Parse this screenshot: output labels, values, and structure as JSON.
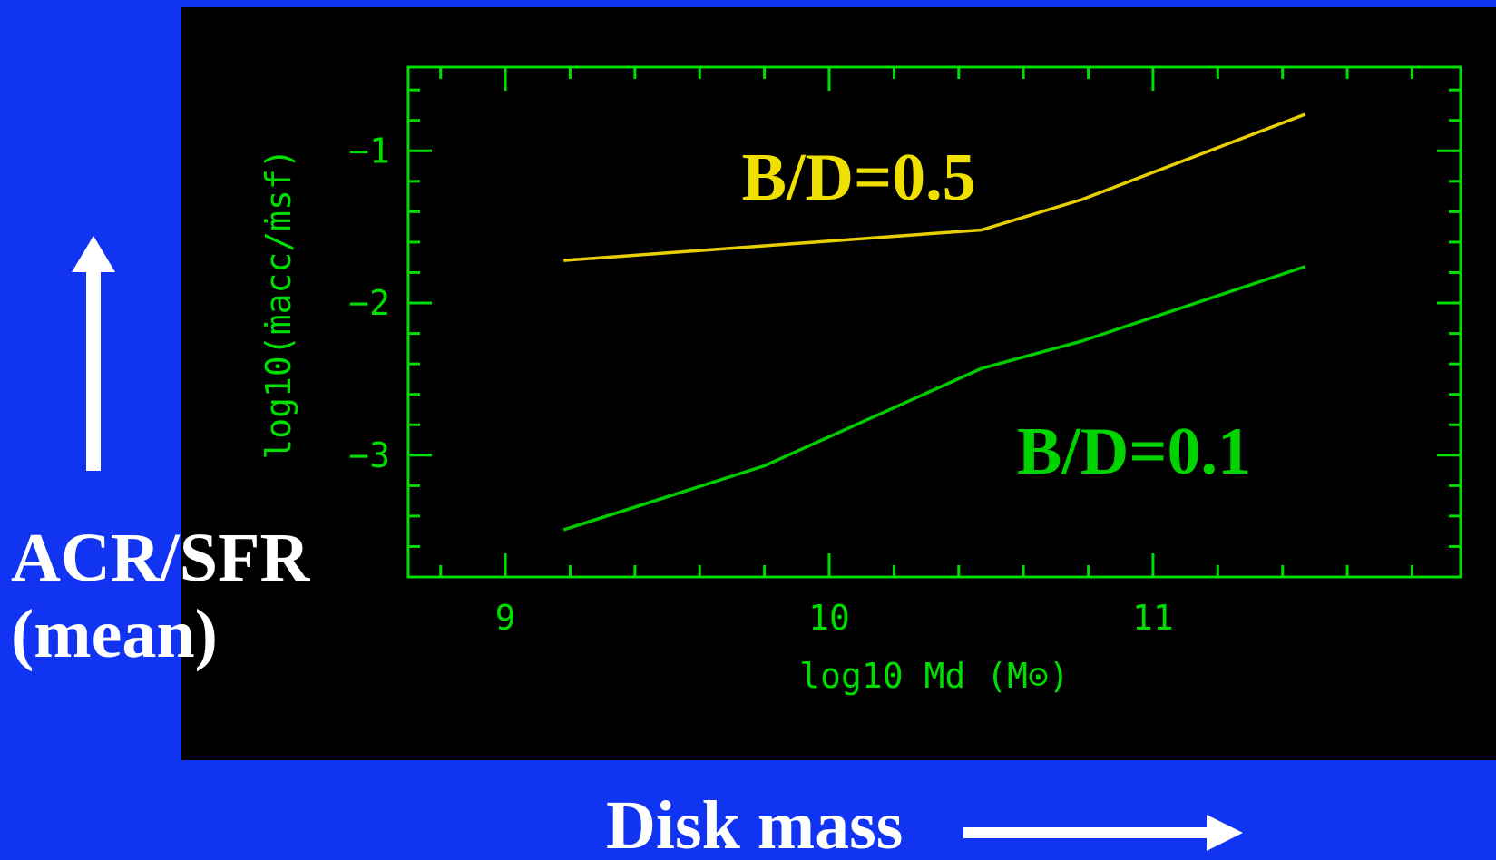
{
  "colors": {
    "background": "#1134f2",
    "panel": "#000000",
    "axes": "#00dd00",
    "series_b05": "#e8d000",
    "series_b01": "#00cc00",
    "annotation_b05": "#f0e000",
    "annotation_b01": "#00d400",
    "caption": "#ffffff"
  },
  "captions": {
    "ylabel_line1": "ACR/SFR",
    "ylabel_line2": "(mean)",
    "xlabel": "Disk mass"
  },
  "icons": {
    "up": "arrow-up-icon",
    "right": "arrow-right-icon"
  },
  "chart_data": {
    "type": "line",
    "xlabel": "log10 Md (M⊙)",
    "ylabel": "log10(ṁacc/ṁsf)",
    "xlim": [
      8.7,
      11.95
    ],
    "ylim": [
      -3.8,
      -0.45
    ],
    "xticks": [
      9,
      10,
      11
    ],
    "xtick_labels": [
      "9",
      "10",
      "11"
    ],
    "yticks": [
      -1,
      -2,
      -3
    ],
    "ytick_labels": [
      "−1",
      "−2",
      "−3"
    ],
    "grid": false,
    "legend": "none",
    "series": [
      {
        "name": "B/D=0.5",
        "color": "#e8d000",
        "x": [
          9.18,
          10.47,
          10.78,
          11.47
        ],
        "y": [
          -1.72,
          -1.52,
          -1.32,
          -0.76
        ]
      },
      {
        "name": "B/D=0.1",
        "color": "#00cc00",
        "x": [
          9.18,
          9.8,
          10.47,
          10.78,
          11.47
        ],
        "y": [
          -3.49,
          -3.07,
          -2.43,
          -2.25,
          -1.76
        ]
      }
    ],
    "annotations": [
      {
        "text": "B/D=0.5",
        "x": 9.73,
        "y": -1.32,
        "color": "#f0e000"
      },
      {
        "text": "B/D=0.1",
        "x": 10.58,
        "y": -3.12,
        "color": "#00d400"
      }
    ]
  }
}
